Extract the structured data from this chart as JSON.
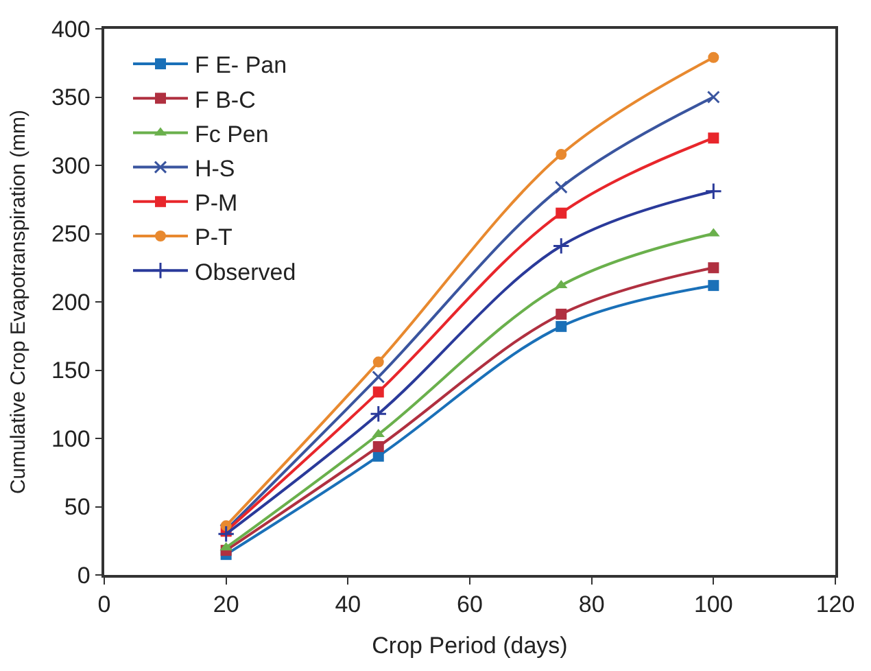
{
  "chart_data": {
    "type": "line",
    "xlabel": "Crop Period (days)",
    "ylabel": "Cumulative Crop Evapotranspiration (mm)",
    "x": [
      20,
      45,
      75,
      100
    ],
    "xlim": [
      0,
      120
    ],
    "xticks": [
      0,
      20,
      40,
      60,
      80,
      100,
      120
    ],
    "ylim": [
      0,
      400
    ],
    "yticks": [
      0,
      50,
      100,
      150,
      200,
      250,
      300,
      350,
      400
    ],
    "legend": "top left",
    "series": [
      {
        "name": "F E- Pan",
        "color": "#1a70b8",
        "marker": "square",
        "values": [
          15,
          87,
          182,
          212
        ]
      },
      {
        "name": "F B-C",
        "color": "#b03040",
        "marker": "square",
        "values": [
          18,
          94,
          191,
          225
        ]
      },
      {
        "name": "Fc Pen",
        "color": "#6ab04c",
        "marker": "triangle",
        "values": [
          20,
          103,
          212,
          250
        ]
      },
      {
        "name": "H-S",
        "color": "#3a559f",
        "marker": "x",
        "values": [
          33,
          145,
          284,
          350
        ]
      },
      {
        "name": "P-M",
        "color": "#e8262b",
        "marker": "square",
        "values": [
          32,
          134,
          265,
          320
        ]
      },
      {
        "name": "P-T",
        "color": "#e8892f",
        "marker": "circle",
        "values": [
          36,
          156,
          308,
          379
        ]
      },
      {
        "name": "Observed",
        "color": "#2a3a9a",
        "marker": "cross",
        "values": [
          30,
          118,
          241,
          281
        ]
      }
    ]
  }
}
